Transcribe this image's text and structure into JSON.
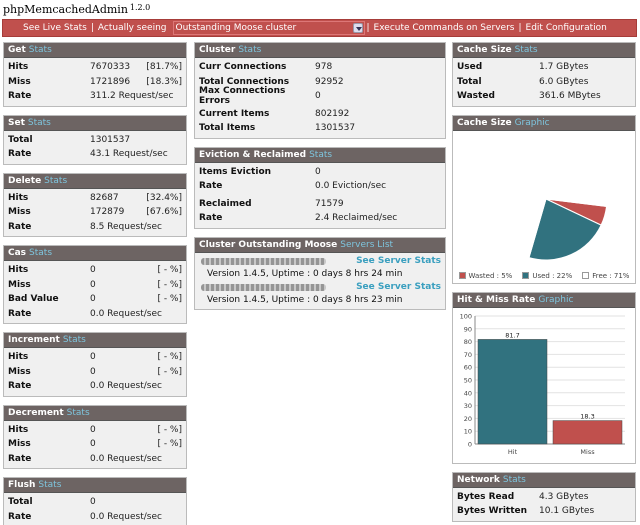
{
  "app": {
    "title": "phpMemcachedAdmin",
    "version": "1.2.0"
  },
  "menu": {
    "live_stats": "See Live Stats",
    "actually_seeing": "Actually seeing",
    "cluster_select": "Outstanding Moose cluster",
    "execute": "Execute Commands on Servers",
    "edit_config": "Edit Configuration",
    "sep": "|"
  },
  "panels": {
    "get": {
      "title": "Get",
      "accent": "Stats",
      "rows": [
        {
          "k": "Hits",
          "v": "7670333",
          "p": "[81.7%]"
        },
        {
          "k": "Miss",
          "v": "1721896",
          "p": "[18.3%]"
        },
        {
          "k": "Rate",
          "v": "311.2 Request/sec"
        }
      ]
    },
    "set": {
      "title": "Set",
      "accent": "Stats",
      "rows": [
        {
          "k": "Total",
          "v": "1301537"
        },
        {
          "k": "Rate",
          "v": "43.1 Request/sec"
        }
      ]
    },
    "delete": {
      "title": "Delete",
      "accent": "Stats",
      "rows": [
        {
          "k": "Hits",
          "v": "82687",
          "p": "[32.4%]"
        },
        {
          "k": "Miss",
          "v": "172879",
          "p": "[67.6%]"
        },
        {
          "k": "Rate",
          "v": "8.5 Request/sec"
        }
      ]
    },
    "cas": {
      "title": "Cas",
      "accent": "Stats",
      "rows": [
        {
          "k": "Hits",
          "v": "0",
          "p": "[ - %]"
        },
        {
          "k": "Miss",
          "v": "0",
          "p": "[ - %]"
        },
        {
          "k": "Bad Value",
          "v": "0",
          "p": "[ - %]"
        },
        {
          "k": "Rate",
          "v": "0.0 Request/sec"
        }
      ]
    },
    "increment": {
      "title": "Increment",
      "accent": "Stats",
      "rows": [
        {
          "k": "Hits",
          "v": "0",
          "p": "[ - %]"
        },
        {
          "k": "Miss",
          "v": "0",
          "p": "[ - %]"
        },
        {
          "k": "Rate",
          "v": "0.0 Request/sec"
        }
      ]
    },
    "decrement": {
      "title": "Decrement",
      "accent": "Stats",
      "rows": [
        {
          "k": "Hits",
          "v": "0",
          "p": "[ - %]"
        },
        {
          "k": "Miss",
          "v": "0",
          "p": "[ - %]"
        },
        {
          "k": "Rate",
          "v": "0.0 Request/sec"
        }
      ]
    },
    "flush": {
      "title": "Flush",
      "accent": "Stats",
      "rows": [
        {
          "k": "Total",
          "v": "0"
        },
        {
          "k": "Rate",
          "v": "0.0 Request/sec"
        }
      ]
    },
    "cluster": {
      "title": "Cluster",
      "accent": "Stats",
      "rows_a": [
        {
          "k": "Curr Connections",
          "v": "978"
        },
        {
          "k": "Total Connections",
          "v": "92952"
        },
        {
          "k": "Max Connections Errors",
          "v": "0"
        }
      ],
      "rows_b": [
        {
          "k": "Current Items",
          "v": "802192"
        },
        {
          "k": "Total Items",
          "v": "1301537"
        }
      ]
    },
    "eviction": {
      "title": "Eviction & Reclaimed",
      "accent": "Stats",
      "rows_a": [
        {
          "k": "Items Eviction",
          "v": "0"
        },
        {
          "k": "Rate",
          "v": "0.0 Eviction/sec"
        }
      ],
      "rows_b": [
        {
          "k": "Reclaimed",
          "v": "71579"
        },
        {
          "k": "Rate",
          "v": "2.4 Reclaimed/sec"
        }
      ]
    },
    "servers": {
      "title": "Cluster Outstanding Moose",
      "accent": "Servers List",
      "items": [
        {
          "link": "See Server Stats",
          "info": "Version 1.4.5, Uptime : 0 days 8 hrs 24 min"
        },
        {
          "link": "See Server Stats",
          "info": "Version 1.4.5, Uptime : 0 days 8 hrs 23 min"
        }
      ]
    },
    "cache_size": {
      "title": "Cache Size",
      "accent": "Stats",
      "rows": [
        {
          "k": "Used",
          "v": "1.7 GBytes"
        },
        {
          "k": "Total",
          "v": "6.0 GBytes"
        },
        {
          "k": "Wasted",
          "v": "361.6 MBytes"
        }
      ]
    },
    "cache_graphic": {
      "title": "Cache Size",
      "accent": "Graphic"
    },
    "hitmiss_graphic": {
      "title": "Hit & Miss Rate",
      "accent": "Graphic"
    },
    "network": {
      "title": "Network",
      "accent": "Stats",
      "rows": [
        {
          "k": "Bytes Read",
          "v": "4.3 GBytes"
        },
        {
          "k": "Bytes Written",
          "v": "10.1 GBytes"
        }
      ]
    }
  },
  "colors": {
    "wasted": "#c0504d",
    "used": "#31727f",
    "free": "#ffffff",
    "header": "#6d6463",
    "accent": "#7ec5de",
    "menubar": "#c0504d"
  },
  "chart_data": [
    {
      "type": "pie",
      "categories": [
        "Wasted",
        "Used",
        "Free"
      ],
      "values": [
        5,
        22,
        71
      ],
      "legend": [
        "Wasted : 5%",
        "Used : 22%",
        "Free : 71%"
      ],
      "legend_position": "bottom"
    },
    {
      "type": "bar",
      "categories": [
        "Hit",
        "Miss"
      ],
      "values": [
        81.7,
        18.3
      ],
      "data_labels": [
        "81.7",
        "18.3"
      ],
      "ylim": [
        0,
        100
      ],
      "yticks": [
        0,
        10,
        20,
        30,
        40,
        50,
        60,
        70,
        80,
        90,
        100
      ],
      "grid": true
    }
  ]
}
